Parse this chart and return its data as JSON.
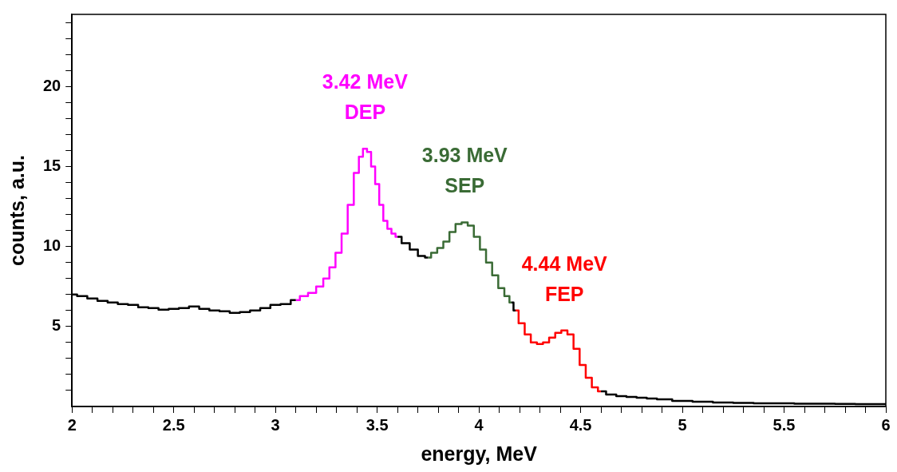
{
  "chart_data": {
    "type": "step",
    "xlabel": "energy, MeV",
    "ylabel": "counts, a.u.",
    "xlim": [
      2,
      6
    ],
    "ylim": [
      0,
      24.5
    ],
    "xticks": [
      2,
      {
        "value": 2.1,
        "label": null
      },
      {
        "value": 2.2,
        "label": null
      },
      {
        "value": 2.3,
        "label": null
      },
      {
        "value": 2.4,
        "label": null
      },
      2.5,
      {
        "value": 2.6,
        "label": null
      },
      {
        "value": 2.7,
        "label": null
      },
      {
        "value": 2.8,
        "label": null
      },
      {
        "value": 2.9,
        "label": null
      },
      3,
      {
        "value": 3.1,
        "label": null
      },
      {
        "value": 3.2,
        "label": null
      },
      {
        "value": 3.3,
        "label": null
      },
      {
        "value": 3.4,
        "label": null
      },
      3.5,
      {
        "value": 3.6,
        "label": null
      },
      {
        "value": 3.7,
        "label": null
      },
      {
        "value": 3.8,
        "label": null
      },
      {
        "value": 3.9,
        "label": null
      },
      4,
      {
        "value": 4.1,
        "label": null
      },
      {
        "value": 4.2,
        "label": null
      },
      {
        "value": 4.3,
        "label": null
      },
      {
        "value": 4.4,
        "label": null
      },
      4.5,
      {
        "value": 4.6,
        "label": null
      },
      {
        "value": 4.7,
        "label": null
      },
      {
        "value": 4.8,
        "label": null
      },
      {
        "value": 4.9,
        "label": null
      },
      5,
      {
        "value": 5.1,
        "label": null
      },
      {
        "value": 5.2,
        "label": null
      },
      {
        "value": 5.3,
        "label": null
      },
      {
        "value": 5.4,
        "label": null
      },
      5.5,
      {
        "value": 5.6,
        "label": null
      },
      {
        "value": 5.7,
        "label": null
      },
      {
        "value": 5.8,
        "label": null
      },
      {
        "value": 5.9,
        "label": null
      },
      6
    ],
    "yticks": [
      {
        "value": 1,
        "label": null
      },
      {
        "value": 2,
        "label": null
      },
      {
        "value": 3,
        "label": null
      },
      {
        "value": 4,
        "label": null
      },
      5,
      {
        "value": 6,
        "label": null
      },
      {
        "value": 7,
        "label": null
      },
      {
        "value": 8,
        "label": null
      },
      {
        "value": 9,
        "label": null
      },
      10,
      {
        "value": 11,
        "label": null
      },
      {
        "value": 12,
        "label": null
      },
      {
        "value": 13,
        "label": null
      },
      {
        "value": 14,
        "label": null
      },
      15,
      {
        "value": 16,
        "label": null
      },
      {
        "value": 17,
        "label": null
      },
      {
        "value": 18,
        "label": null
      },
      {
        "value": 19,
        "label": null
      },
      20,
      {
        "value": 21,
        "label": null
      },
      {
        "value": 22,
        "label": null
      },
      {
        "value": 23,
        "label": null
      },
      {
        "value": 24,
        "label": null
      }
    ],
    "grid": false,
    "legend": false,
    "marker": "none",
    "line_style": "solid",
    "series": [
      {
        "color": "#000000",
        "x": [
          2.0,
          2.05,
          2.1,
          2.15,
          2.2,
          2.25,
          2.3,
          2.35,
          2.4,
          2.45,
          2.5,
          2.55,
          2.6,
          2.65,
          2.7,
          2.75,
          2.8,
          2.85,
          2.9,
          2.95,
          3.0,
          3.05,
          3.1,
          3.3,
          3.6,
          3.64,
          3.68,
          3.72,
          3.75,
          3.95,
          4.16,
          4.18,
          4.4,
          4.6,
          4.65,
          4.7,
          4.75,
          4.8,
          4.85,
          4.9,
          5.0,
          5.1,
          5.2,
          5.3,
          5.4,
          5.5,
          5.6,
          5.7,
          5.8,
          5.9,
          6.0
        ],
        "values": [
          7.0,
          6.9,
          6.75,
          6.6,
          6.5,
          6.4,
          6.35,
          6.2,
          6.15,
          6.05,
          6.1,
          6.15,
          6.25,
          6.1,
          6.0,
          5.95,
          5.85,
          5.9,
          6.0,
          6.15,
          6.35,
          6.4,
          6.65,
          null,
          10.6,
          10.2,
          9.8,
          9.4,
          9.3,
          null,
          6.5,
          6.0,
          null,
          0.95,
          0.75,
          0.65,
          0.6,
          0.55,
          0.5,
          0.45,
          0.35,
          0.3,
          0.25,
          0.22,
          0.2,
          0.2,
          0.18,
          0.17,
          0.16,
          0.15,
          0.15
        ]
      },
      {
        "color": "#ff00ff",
        "x": [
          3.1,
          3.14,
          3.18,
          3.22,
          3.25,
          3.28,
          3.31,
          3.34,
          3.37,
          3.4,
          3.42,
          3.44,
          3.46,
          3.48,
          3.5,
          3.52,
          3.54,
          3.56,
          3.58,
          3.6
        ],
        "values": [
          6.65,
          6.9,
          7.1,
          7.5,
          8.0,
          8.7,
          9.6,
          10.8,
          12.6,
          14.6,
          15.6,
          16.1,
          15.9,
          15.0,
          13.9,
          12.6,
          11.6,
          11.1,
          10.8,
          10.6
        ]
      },
      {
        "color": "#3a6b35",
        "x": [
          3.75,
          3.78,
          3.81,
          3.84,
          3.87,
          3.9,
          3.93,
          3.96,
          3.99,
          4.02,
          4.05,
          4.08,
          4.11,
          4.14,
          4.16
        ],
        "values": [
          9.3,
          9.6,
          9.9,
          10.3,
          10.9,
          11.4,
          11.5,
          11.3,
          10.6,
          9.8,
          9.0,
          8.2,
          7.4,
          6.9,
          6.5
        ]
      },
      {
        "color": "#ff0000",
        "x": [
          4.18,
          4.21,
          4.24,
          4.27,
          4.3,
          4.33,
          4.36,
          4.39,
          4.42,
          4.45,
          4.48,
          4.51,
          4.54,
          4.57,
          4.6
        ],
        "values": [
          6.0,
          5.2,
          4.5,
          4.0,
          3.9,
          4.0,
          4.3,
          4.6,
          4.75,
          4.5,
          3.6,
          2.6,
          1.8,
          1.2,
          0.95
        ]
      }
    ],
    "annotations": [
      {
        "text": "3.42 MeV\nDEP",
        "x": 3.44,
        "y": 16.1
      },
      {
        "text": "3.93 MeV\nSEP",
        "x": 3.93,
        "y": 11.5
      },
      {
        "text": "4.44 MeV\nFEP",
        "x": 4.42,
        "y": 4.75
      }
    ]
  }
}
